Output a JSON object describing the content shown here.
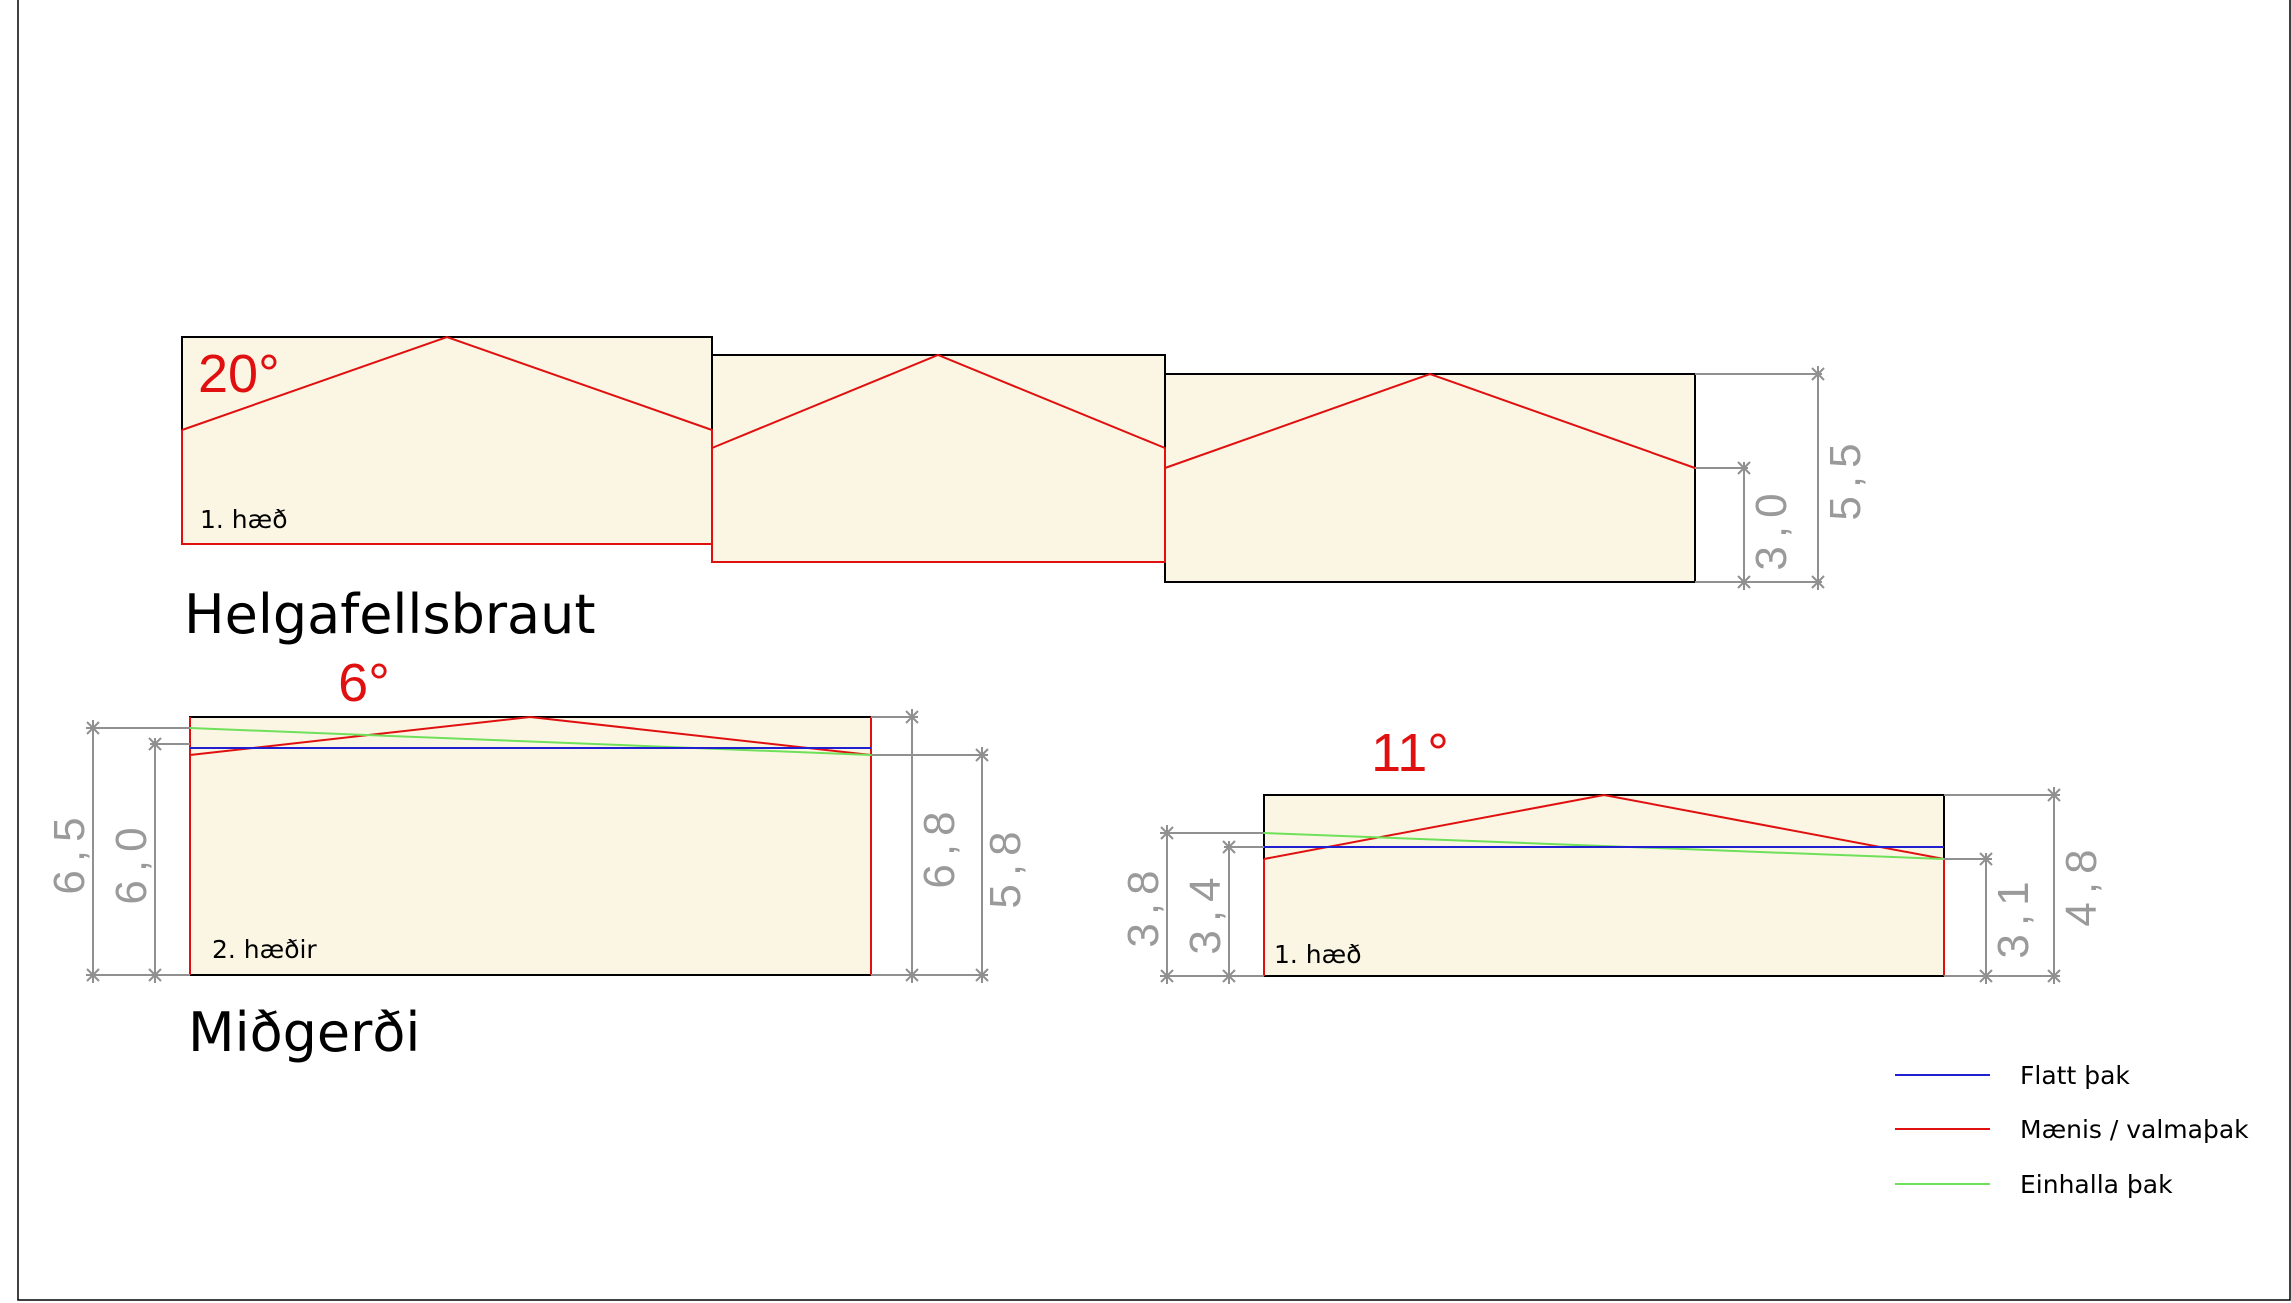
{
  "sections": [
    {
      "name": "Helgafellsbraut",
      "angle": "20°",
      "floor_label": "1. hæð",
      "dimensions": [
        "3,0",
        "5,5"
      ]
    },
    {
      "name": "Miðgerði",
      "angle": "6°",
      "floor_label": "2. hæðir",
      "dimensions": [
        "6,5",
        "6,0",
        "6,8",
        "5,8"
      ]
    },
    {
      "name": "",
      "angle": "11°",
      "floor_label": "1. hæð",
      "dimensions": [
        "3,8",
        "3,4",
        "3,1",
        "4,8"
      ]
    }
  ],
  "legend": [
    {
      "label": "Flatt þak",
      "color": "#2020d0"
    },
    {
      "label": "Mænis / valmaþak",
      "color": "#e01010"
    },
    {
      "label": "Einhalla þak",
      "color": "#6ee05a"
    }
  ]
}
